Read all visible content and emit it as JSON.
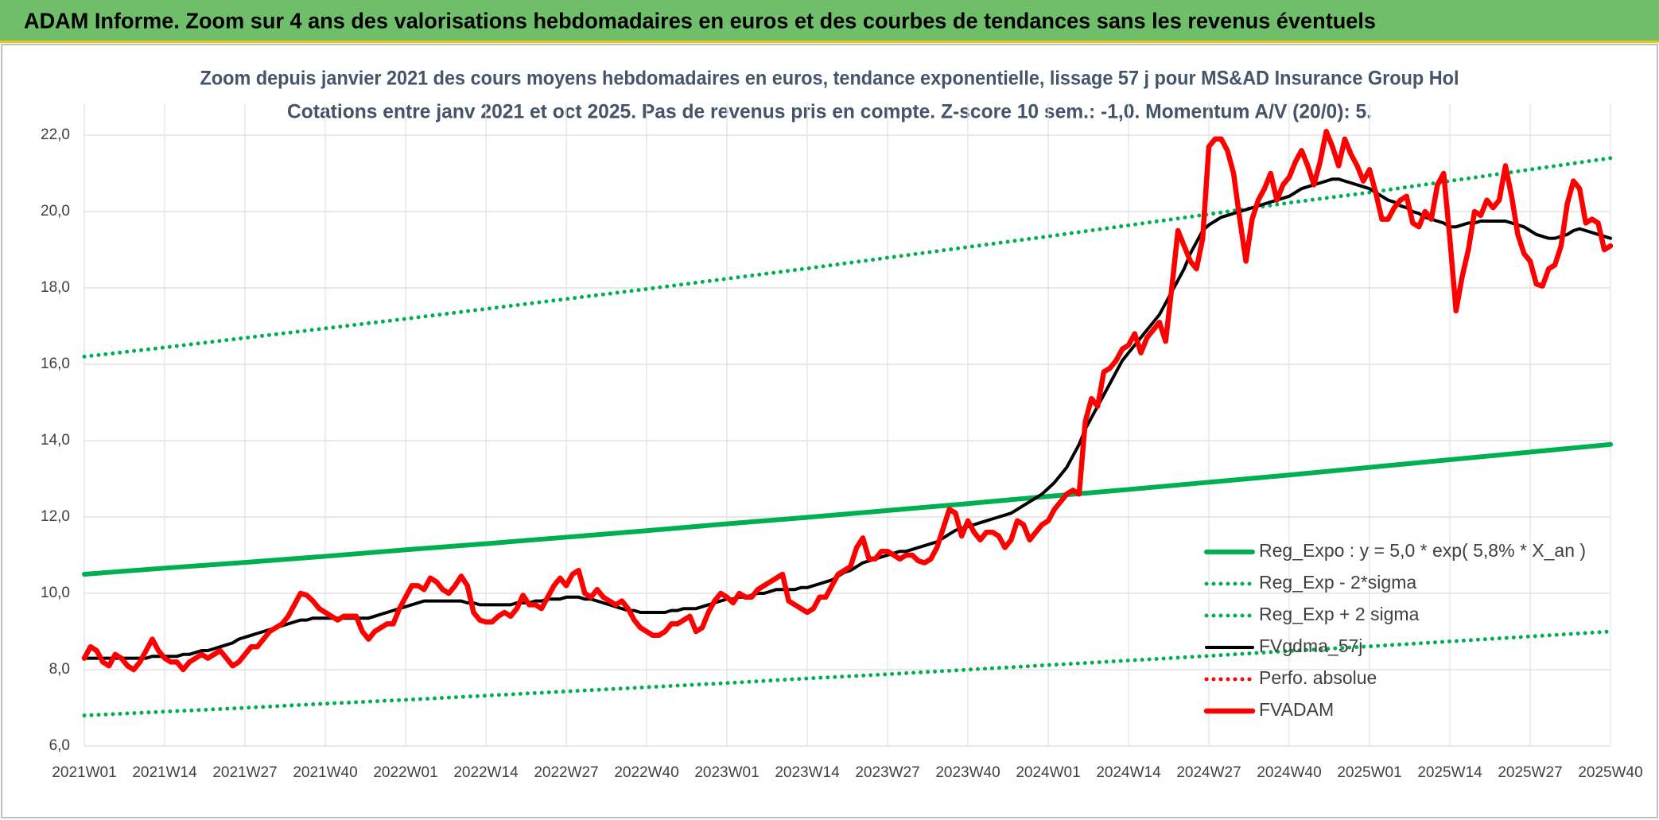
{
  "header": {
    "title": "ADAM Informe. Zoom sur 4 ans des valorisations hebdomadaires en euros et des courbes de tendances sans les revenus éventuels"
  },
  "chart_data": {
    "type": "line",
    "title": "Zoom depuis janvier 2021 des cours moyens hebdomadaires en euros, tendance exponentielle, lissage 57 j pour MS&AD Insurance Group Hol",
    "subtitle": "Cotations entre janv 2021 et oct 2025. Pas de revenus pris en compte. Z-score 10 sem.: -1,0. Momentum A/V (20/0): 5.",
    "categories": [
      "2021W01",
      null,
      null,
      null,
      null,
      null,
      null,
      null,
      null,
      null,
      null,
      null,
      null,
      "2021W14",
      null,
      null,
      null,
      null,
      null,
      null,
      null,
      null,
      null,
      null,
      null,
      null,
      "2021W27",
      null,
      null,
      null,
      null,
      null,
      null,
      null,
      null,
      null,
      null,
      null,
      null,
      "2021W40",
      null,
      null,
      null,
      null,
      null,
      null,
      null,
      null,
      null,
      null,
      null,
      null,
      "2022W01",
      null,
      null,
      null,
      null,
      null,
      null,
      null,
      null,
      null,
      null,
      null,
      null,
      "2022W14",
      null,
      null,
      null,
      null,
      null,
      null,
      null,
      null,
      null,
      null,
      null,
      null,
      "2022W27",
      null,
      null,
      null,
      null,
      null,
      null,
      null,
      null,
      null,
      null,
      null,
      null,
      "2022W40",
      null,
      null,
      null,
      null,
      null,
      null,
      null,
      null,
      null,
      null,
      null,
      null,
      "2023W01",
      null,
      null,
      null,
      null,
      null,
      null,
      null,
      null,
      null,
      null,
      null,
      null,
      "2023W14",
      null,
      null,
      null,
      null,
      null,
      null,
      null,
      null,
      null,
      null,
      null,
      null,
      "2023W27",
      null,
      null,
      null,
      null,
      null,
      null,
      null,
      null,
      null,
      null,
      null,
      null,
      "2023W40",
      null,
      null,
      null,
      null,
      null,
      null,
      null,
      null,
      null,
      null,
      null,
      null,
      "2024W01",
      null,
      null,
      null,
      null,
      null,
      null,
      null,
      null,
      null,
      null,
      null,
      null,
      "2024W14",
      null,
      null,
      null,
      null,
      null,
      null,
      null,
      null,
      null,
      null,
      null,
      null,
      "2024W27",
      null,
      null,
      null,
      null,
      null,
      null,
      null,
      null,
      null,
      null,
      null,
      null,
      "2024W40",
      null,
      null,
      null,
      null,
      null,
      null,
      null,
      null,
      null,
      null,
      null,
      null,
      "2025W01",
      null,
      null,
      null,
      null,
      null,
      null,
      null,
      null,
      null,
      null,
      null,
      null,
      "2025W14",
      null,
      null,
      null,
      null,
      null,
      null,
      null,
      null,
      null,
      null,
      null,
      null,
      "2025W27",
      null,
      null,
      null,
      null,
      null,
      null,
      null,
      null,
      null,
      null,
      null,
      null,
      "2025W40"
    ],
    "ylim": [
      6,
      22
    ],
    "yticks": [
      {
        "value": 6,
        "label": "6,0"
      },
      {
        "value": 8,
        "label": "8,0"
      },
      {
        "value": 10,
        "label": "10,0"
      },
      {
        "value": 12,
        "label": "12,0"
      },
      {
        "value": 14,
        "label": "14,0"
      },
      {
        "value": 16,
        "label": "16,0"
      },
      {
        "value": 18,
        "label": "18,0"
      },
      {
        "value": 20,
        "label": "20,0"
      },
      {
        "value": 22,
        "label": "22,0"
      }
    ],
    "grid": true,
    "legend": "lower right",
    "series": [
      {
        "name": "Reg_Expo : y = 5,0 * exp( 5,8% *  X_an )",
        "color": "#00b050",
        "style": "solid",
        "x": [
          "2021W01",
          "2021W14",
          "2021W27",
          "2021W40",
          "2022W01",
          "2022W14",
          "2022W27",
          "2022W40",
          "2023W01",
          "2023W14",
          "2023W27",
          "2023W40",
          "2024W01",
          "2024W14",
          "2024W27",
          "2024W40",
          "2025W01",
          "2025W14",
          "2025W27",
          "2025W40"
        ],
        "values": [
          10.5,
          10.66,
          10.81,
          10.97,
          11.14,
          11.3,
          11.47,
          11.64,
          11.82,
          11.99,
          12.17,
          12.35,
          12.54,
          12.72,
          12.91,
          13.1,
          13.3,
          13.5,
          13.7,
          13.9
        ]
      },
      {
        "name": "Reg_Exp - 2*sigma",
        "color": "#00b050",
        "style": "dotted",
        "x": [
          "2021W01",
          "2021W14",
          "2021W27",
          "2021W40",
          "2022W01",
          "2022W14",
          "2022W27",
          "2022W40",
          "2023W01",
          "2023W14",
          "2023W27",
          "2023W40",
          "2024W01",
          "2024W14",
          "2024W27",
          "2024W40",
          "2025W01",
          "2025W14",
          "2025W27",
          "2025W40"
        ],
        "values": [
          6.8,
          6.9,
          7.0,
          7.11,
          7.21,
          7.32,
          7.43,
          7.54,
          7.65,
          7.77,
          7.88,
          8.0,
          8.12,
          8.24,
          8.36,
          8.49,
          8.61,
          8.74,
          8.87,
          9.0
        ]
      },
      {
        "name": "Reg_Exp + 2 sigma",
        "color": "#00b050",
        "style": "dotted",
        "x": [
          "2021W01",
          "2021W14",
          "2021W27",
          "2021W40",
          "2022W01",
          "2022W14",
          "2022W27",
          "2022W40",
          "2023W01",
          "2023W14",
          "2023W27",
          "2023W40",
          "2024W01",
          "2024W14",
          "2024W27",
          "2024W40",
          "2025W01",
          "2025W14",
          "2025W27",
          "2025W40"
        ],
        "values": [
          16.2,
          16.44,
          16.69,
          16.94,
          17.19,
          17.45,
          17.71,
          17.97,
          18.24,
          18.51,
          18.79,
          19.07,
          19.35,
          19.64,
          19.93,
          20.23,
          20.5,
          20.8,
          21.1,
          21.4
        ]
      },
      {
        "name": "FVgdma_57j",
        "color": "#000000",
        "style": "solid",
        "width": 4,
        "values": [
          8.3,
          8.3,
          8.3,
          8.3,
          8.3,
          8.3,
          8.3,
          8.3,
          8.3,
          8.3,
          8.3,
          8.35,
          8.35,
          8.35,
          8.35,
          8.35,
          8.4,
          8.4,
          8.45,
          8.5,
          8.5,
          8.55,
          8.6,
          8.65,
          8.7,
          8.8,
          8.85,
          8.9,
          8.95,
          9.0,
          9.05,
          9.1,
          9.15,
          9.2,
          9.25,
          9.3,
          9.3,
          9.35,
          9.35,
          9.35,
          9.35,
          9.35,
          9.35,
          9.35,
          9.35,
          9.35,
          9.35,
          9.4,
          9.45,
          9.5,
          9.55,
          9.6,
          9.65,
          9.7,
          9.75,
          9.8,
          9.8,
          9.8,
          9.8,
          9.8,
          9.8,
          9.8,
          9.75,
          9.75,
          9.7,
          9.7,
          9.7,
          9.7,
          9.7,
          9.7,
          9.75,
          9.75,
          9.75,
          9.8,
          9.8,
          9.85,
          9.85,
          9.85,
          9.9,
          9.9,
          9.9,
          9.85,
          9.85,
          9.8,
          9.75,
          9.7,
          9.65,
          9.6,
          9.55,
          9.55,
          9.5,
          9.5,
          9.5,
          9.5,
          9.5,
          9.55,
          9.55,
          9.6,
          9.6,
          9.6,
          9.65,
          9.7,
          9.75,
          9.8,
          9.85,
          9.85,
          9.9,
          9.9,
          9.95,
          10.0,
          10.0,
          10.05,
          10.1,
          10.1,
          10.1,
          10.1,
          10.15,
          10.15,
          10.2,
          10.25,
          10.3,
          10.35,
          10.45,
          10.55,
          10.6,
          10.7,
          10.8,
          10.85,
          10.9,
          10.95,
          11.0,
          11.05,
          11.1,
          11.1,
          11.15,
          11.2,
          11.25,
          11.3,
          11.35,
          11.45,
          11.55,
          11.65,
          11.7,
          11.75,
          11.8,
          11.85,
          11.9,
          11.95,
          12.0,
          12.05,
          12.1,
          12.2,
          12.3,
          12.4,
          12.5,
          12.6,
          12.75,
          12.9,
          13.1,
          13.3,
          13.6,
          13.9,
          14.3,
          14.6,
          14.9,
          15.2,
          15.5,
          15.8,
          16.1,
          16.3,
          16.5,
          16.7,
          16.9,
          17.1,
          17.3,
          17.6,
          17.9,
          18.2,
          18.5,
          18.9,
          19.2,
          19.5,
          19.65,
          19.75,
          19.85,
          19.9,
          19.95,
          20.0,
          20.05,
          20.1,
          20.15,
          20.2,
          20.25,
          20.3,
          20.35,
          20.4,
          20.5,
          20.6,
          20.65,
          20.7,
          20.75,
          20.8,
          20.85,
          20.85,
          20.8,
          20.75,
          20.7,
          20.65,
          20.6,
          20.5,
          20.4,
          20.3,
          20.25,
          20.15,
          20.1,
          20.0,
          19.95,
          19.85,
          19.8,
          19.75,
          19.7,
          19.6,
          19.6,
          19.65,
          19.7,
          19.7,
          19.75,
          19.75,
          19.75,
          19.75,
          19.75,
          19.7,
          19.65,
          19.6,
          19.5,
          19.4,
          19.35,
          19.3,
          19.3,
          19.35,
          19.4,
          19.5,
          19.55,
          19.5,
          19.45,
          19.4,
          19.35,
          19.3
        ]
      },
      {
        "name": "Perfo. absolue",
        "color": "#ff0000",
        "style": "dotted"
      },
      {
        "name": "FVADAM",
        "color": "#ff0000",
        "style": "solid",
        "width": 6.5,
        "values": [
          8.3,
          8.6,
          8.5,
          8.2,
          8.1,
          8.4,
          8.3,
          8.1,
          8.0,
          8.2,
          8.5,
          8.8,
          8.5,
          8.3,
          8.2,
          8.2,
          8.0,
          8.2,
          8.3,
          8.4,
          8.3,
          8.4,
          8.5,
          8.3,
          8.1,
          8.2,
          8.4,
          8.6,
          8.6,
          8.8,
          9.0,
          9.1,
          9.2,
          9.4,
          9.7,
          10.0,
          9.95,
          9.8,
          9.6,
          9.5,
          9.4,
          9.3,
          9.4,
          9.4,
          9.4,
          9.0,
          8.8,
          9.0,
          9.1,
          9.2,
          9.2,
          9.6,
          9.9,
          10.2,
          10.2,
          10.1,
          10.4,
          10.3,
          10.1,
          10.0,
          10.2,
          10.45,
          10.2,
          9.5,
          9.3,
          9.25,
          9.25,
          9.4,
          9.5,
          9.4,
          9.6,
          9.95,
          9.7,
          9.7,
          9.6,
          9.9,
          10.2,
          10.4,
          10.2,
          10.5,
          10.6,
          10.0,
          9.9,
          10.1,
          9.9,
          9.8,
          9.7,
          9.8,
          9.6,
          9.3,
          9.1,
          9.0,
          8.9,
          8.9,
          9.0,
          9.2,
          9.2,
          9.3,
          9.4,
          9.0,
          9.1,
          9.5,
          9.8,
          10.0,
          9.9,
          9.75,
          10.0,
          9.9,
          9.9,
          10.1,
          10.2,
          10.3,
          10.4,
          10.5,
          9.8,
          9.7,
          9.6,
          9.5,
          9.6,
          9.9,
          9.9,
          10.2,
          10.5,
          10.6,
          10.7,
          11.2,
          11.45,
          10.9,
          10.9,
          11.1,
          11.1,
          11.0,
          10.9,
          11.0,
          11.0,
          10.85,
          10.8,
          10.9,
          11.2,
          11.7,
          12.2,
          12.1,
          11.5,
          11.9,
          11.6,
          11.4,
          11.6,
          11.6,
          11.5,
          11.2,
          11.4,
          11.9,
          11.8,
          11.4,
          11.6,
          11.8,
          11.9,
          12.2,
          12.4,
          12.6,
          12.7,
          12.6,
          14.5,
          15.1,
          14.9,
          15.8,
          15.9,
          16.1,
          16.4,
          16.5,
          16.8,
          16.3,
          16.7,
          16.9,
          17.1,
          16.6,
          18.0,
          19.5,
          19.1,
          18.7,
          18.5,
          19.3,
          21.7,
          21.9,
          21.9,
          21.6,
          21.0,
          19.8,
          18.7,
          19.8,
          20.3,
          20.6,
          21.0,
          20.3,
          20.7,
          20.9,
          21.3,
          21.6,
          21.2,
          20.7,
          21.3,
          22.1,
          21.7,
          21.2,
          21.9,
          21.5,
          21.2,
          20.8,
          21.1,
          20.5,
          19.8,
          19.8,
          20.1,
          20.3,
          20.4,
          19.7,
          19.6,
          20.0,
          19.8,
          20.7,
          21.0,
          19.3,
          17.4,
          18.3,
          19.0,
          20.0,
          19.9,
          20.3,
          20.1,
          20.3,
          21.2,
          20.4,
          19.4,
          18.9,
          18.7,
          18.1,
          18.05,
          18.5,
          18.6,
          19.1,
          20.2,
          20.8,
          20.6,
          19.7,
          19.8,
          19.7,
          19.0,
          19.1
        ]
      }
    ]
  }
}
